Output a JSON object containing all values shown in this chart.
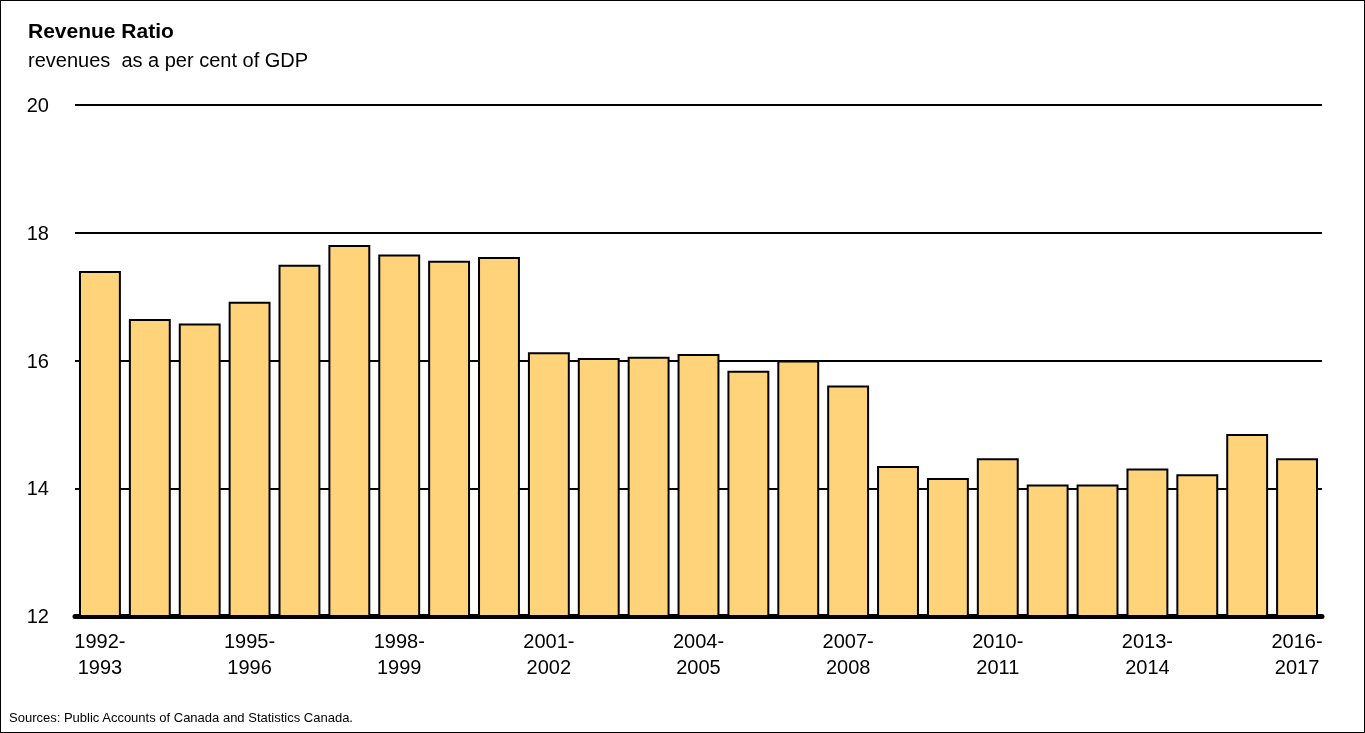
{
  "chart_data": {
    "type": "bar",
    "title": "Revenue Ratio",
    "subtitle": "revenues  as a per cent of GDP",
    "categories": [
      "1992-1993",
      null,
      null,
      "1995-1996",
      null,
      null,
      "1998-1999",
      null,
      null,
      "2001-2002",
      null,
      null,
      "2004-2005",
      null,
      null,
      "2007-2008",
      null,
      null,
      "2010-2011",
      null,
      null,
      "2013-2014",
      null,
      null,
      "2016-2017"
    ],
    "values": [
      17.4,
      16.65,
      16.58,
      16.92,
      17.5,
      17.81,
      17.66,
      17.56,
      17.62,
      16.13,
      16.04,
      16.06,
      16.1,
      15.84,
      16.0,
      15.61,
      14.35,
      14.16,
      14.47,
      14.06,
      14.06,
      14.31,
      14.22,
      14.85,
      14.47
    ],
    "color": "#ffd37a",
    "ylim": [
      12,
      20
    ],
    "yticks": [
      12,
      14,
      16,
      18,
      20
    ],
    "grid": "y",
    "annotations": [
      "Sources: Public Accounts of Canada and Statistics Canada."
    ]
  }
}
